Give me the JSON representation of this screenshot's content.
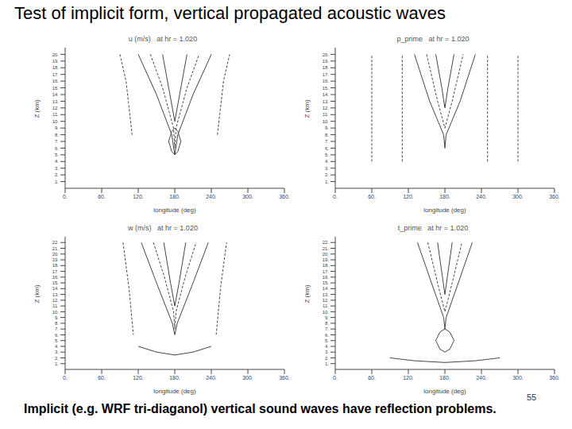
{
  "slide": {
    "title": "Test of implicit form, vertical propagated acoustic waves",
    "caption": "Implicit (e.g. WRF tri-diaganol) vertical sound waves have reflection problems.",
    "page_number": "55"
  },
  "chart_data": [
    {
      "type": "contour",
      "title": "u (m/s)   at hr = 1.020",
      "x_label": "longitude (deg)",
      "y_label": "Z (km)",
      "xlim": [
        0,
        360
      ],
      "xticks": [
        {
          "value": 0,
          "label": "0."
        },
        {
          "value": 60,
          "label": "60."
        },
        {
          "value": 120,
          "label": "120."
        },
        {
          "value": 180,
          "label": "180."
        },
        {
          "value": 240,
          "label": "240."
        },
        {
          "value": 300,
          "label": "300."
        },
        {
          "value": 360,
          "label": "360."
        }
      ],
      "ylim": [
        0,
        21
      ],
      "yticks": [
        {
          "value": 1,
          "label": "1."
        },
        {
          "value": 2,
          "label": "2."
        },
        {
          "value": 3,
          "label": "3."
        },
        {
          "value": 4,
          "label": "4."
        },
        {
          "value": 5,
          "label": "5."
        },
        {
          "value": 6,
          "label": "6."
        },
        {
          "value": 7,
          "label": "7."
        },
        {
          "value": 8,
          "label": "8."
        },
        {
          "value": 9,
          "label": "9."
        },
        {
          "value": 10,
          "label": "10."
        },
        {
          "value": 11,
          "label": "11."
        },
        {
          "value": 12,
          "label": "12."
        },
        {
          "value": 13,
          "label": "13."
        },
        {
          "value": 14,
          "label": "14."
        },
        {
          "value": 15,
          "label": "15."
        },
        {
          "value": 16,
          "label": "16."
        },
        {
          "value": 17,
          "label": "17."
        },
        {
          "value": 18,
          "label": "18."
        },
        {
          "value": 19,
          "label": "19."
        },
        {
          "value": 20,
          "label": "20."
        }
      ],
      "series": [
        {
          "color": "#444444",
          "line_style": "solid",
          "x": [
            120,
            150,
            175,
            180,
            185,
            210,
            240
          ],
          "values": [
            20,
            14,
            8,
            5,
            8,
            14,
            20
          ]
        },
        {
          "color": "#444444",
          "line_style": "dashed",
          "x": [
            140,
            160,
            178,
            180,
            182,
            200,
            220
          ],
          "values": [
            20,
            15,
            9,
            6,
            9,
            15,
            20
          ]
        },
        {
          "color": "#444444",
          "line_style": "solid",
          "x": [
            160,
            172,
            180,
            188,
            200
          ],
          "values": [
            20,
            14,
            10,
            14,
            20
          ]
        },
        {
          "color": "#444444",
          "line_style": "dashed",
          "x": [
            90,
            100,
            105,
            110
          ],
          "values": [
            20,
            16,
            12,
            8
          ]
        },
        {
          "color": "#444444",
          "line_style": "dashed",
          "x": [
            250,
            255,
            260,
            270
          ],
          "values": [
            8,
            12,
            16,
            20
          ]
        },
        {
          "color": "#444444",
          "line_style": "solid",
          "x": [
            170,
            175,
            180,
            185,
            190,
            185,
            180,
            175,
            170
          ],
          "values": [
            7,
            8.5,
            9,
            8.5,
            7,
            5.5,
            5,
            5.5,
            7
          ]
        }
      ]
    },
    {
      "type": "contour",
      "title": "p_prime   at hr = 1.020",
      "x_label": "longitude (deg)",
      "y_label": "Z (km)",
      "xlim": [
        0,
        360
      ],
      "xticks": [
        {
          "value": 0,
          "label": "0."
        },
        {
          "value": 60,
          "label": "60."
        },
        {
          "value": 120,
          "label": "120."
        },
        {
          "value": 180,
          "label": "180."
        },
        {
          "value": 240,
          "label": "240."
        },
        {
          "value": 300,
          "label": "300."
        },
        {
          "value": 360,
          "label": "360."
        }
      ],
      "ylim": [
        0,
        21
      ],
      "yticks": [
        {
          "value": 1,
          "label": "1."
        },
        {
          "value": 2,
          "label": "2."
        },
        {
          "value": 3,
          "label": "3."
        },
        {
          "value": 4,
          "label": "4."
        },
        {
          "value": 5,
          "label": "5."
        },
        {
          "value": 6,
          "label": "6."
        },
        {
          "value": 7,
          "label": "7."
        },
        {
          "value": 8,
          "label": "8."
        },
        {
          "value": 9,
          "label": "9."
        },
        {
          "value": 10,
          "label": "10."
        },
        {
          "value": 11,
          "label": "11."
        },
        {
          "value": 12,
          "label": "12."
        },
        {
          "value": 13,
          "label": "13."
        },
        {
          "value": 14,
          "label": "14."
        },
        {
          "value": 15,
          "label": "15."
        },
        {
          "value": 16,
          "label": "16."
        },
        {
          "value": 17,
          "label": "17."
        },
        {
          "value": 18,
          "label": "18."
        },
        {
          "value": 19,
          "label": "19."
        },
        {
          "value": 20,
          "label": "20."
        }
      ],
      "series": [
        {
          "color": "#444444",
          "line_style": "dashed",
          "x": [
            60,
            60
          ],
          "values": [
            4,
            20
          ]
        },
        {
          "color": "#444444",
          "line_style": "dashed",
          "x": [
            110,
            110
          ],
          "values": [
            4,
            20
          ]
        },
        {
          "color": "#444444",
          "line_style": "dashed",
          "x": [
            250,
            250
          ],
          "values": [
            4,
            20
          ]
        },
        {
          "color": "#444444",
          "line_style": "dashed",
          "x": [
            300,
            300
          ],
          "values": [
            4,
            20
          ]
        },
        {
          "color": "#444444",
          "line_style": "solid",
          "x": [
            130,
            155,
            178,
            180,
            182,
            205,
            230
          ],
          "values": [
            20,
            13,
            8,
            6,
            8,
            13,
            20
          ]
        },
        {
          "color": "#444444",
          "line_style": "dashed",
          "x": [
            150,
            168,
            180,
            192,
            210
          ],
          "values": [
            20,
            13,
            9,
            13,
            20
          ]
        },
        {
          "color": "#444444",
          "line_style": "solid",
          "x": [
            165,
            175,
            180,
            185,
            195
          ],
          "values": [
            20,
            15,
            12,
            15,
            20
          ]
        }
      ]
    },
    {
      "type": "contour",
      "title": "w (m/s)   at hr = 1.020",
      "x_label": "longitude (deg)",
      "y_label": "Z (km)",
      "xlim": [
        0,
        360
      ],
      "xticks": [
        {
          "value": 0,
          "label": "0."
        },
        {
          "value": 60,
          "label": "60."
        },
        {
          "value": 120,
          "label": "120."
        },
        {
          "value": 180,
          "label": "180."
        },
        {
          "value": 240,
          "label": "240."
        },
        {
          "value": 300,
          "label": "300."
        },
        {
          "value": 360,
          "label": "360."
        }
      ],
      "ylim": [
        0,
        23
      ],
      "yticks": [
        {
          "value": 1,
          "label": "1."
        },
        {
          "value": 2,
          "label": "2."
        },
        {
          "value": 3,
          "label": "3."
        },
        {
          "value": 4,
          "label": "4."
        },
        {
          "value": 5,
          "label": "5."
        },
        {
          "value": 6,
          "label": "6."
        },
        {
          "value": 7,
          "label": "7."
        },
        {
          "value": 8,
          "label": "8."
        },
        {
          "value": 9,
          "label": "9."
        },
        {
          "value": 10,
          "label": "10."
        },
        {
          "value": 11,
          "label": "11."
        },
        {
          "value": 12,
          "label": "12."
        },
        {
          "value": 13,
          "label": "13."
        },
        {
          "value": 14,
          "label": "14."
        },
        {
          "value": 15,
          "label": "15."
        },
        {
          "value": 16,
          "label": "16."
        },
        {
          "value": 17,
          "label": "17."
        },
        {
          "value": 18,
          "label": "18."
        },
        {
          "value": 19,
          "label": "19."
        },
        {
          "value": 20,
          "label": "20."
        },
        {
          "value": 21,
          "label": "21."
        },
        {
          "value": 22,
          "label": "22."
        }
      ],
      "series": [
        {
          "color": "#444444",
          "line_style": "solid",
          "x": [
            125,
            150,
            176,
            180,
            184,
            210,
            235
          ],
          "values": [
            22,
            15,
            8,
            6,
            8,
            15,
            22
          ]
        },
        {
          "color": "#444444",
          "line_style": "dashed",
          "x": [
            145,
            163,
            178,
            180,
            182,
            197,
            215
          ],
          "values": [
            22,
            16,
            10,
            7,
            10,
            16,
            22
          ]
        },
        {
          "color": "#444444",
          "line_style": "solid",
          "x": [
            162,
            173,
            180,
            187,
            198
          ],
          "values": [
            22,
            15,
            11,
            15,
            22
          ]
        },
        {
          "color": "#444444",
          "line_style": "dashed",
          "x": [
            95,
            105,
            112
          ],
          "values": [
            22,
            14,
            6
          ]
        },
        {
          "color": "#444444",
          "line_style": "dashed",
          "x": [
            248,
            255,
            265
          ],
          "values": [
            6,
            14,
            22
          ]
        },
        {
          "color": "#444444",
          "line_style": "solid",
          "x": [
            120,
            150,
            180,
            210,
            240
          ],
          "values": [
            4,
            3,
            2.5,
            3,
            4
          ]
        }
      ]
    },
    {
      "type": "contour",
      "title": "t_prime   at hr = 1.020",
      "x_label": "longitude (deg)",
      "y_label": "Z (km)",
      "xlim": [
        0,
        360
      ],
      "xticks": [
        {
          "value": 0,
          "label": "0."
        },
        {
          "value": 60,
          "label": "60."
        },
        {
          "value": 120,
          "label": "120."
        },
        {
          "value": 180,
          "label": "180."
        },
        {
          "value": 240,
          "label": "240."
        },
        {
          "value": 300,
          "label": "300."
        },
        {
          "value": 360,
          "label": "360."
        }
      ],
      "ylim": [
        0,
        23
      ],
      "yticks": [
        {
          "value": 1,
          "label": "1."
        },
        {
          "value": 2,
          "label": "2."
        },
        {
          "value": 3,
          "label": "3."
        },
        {
          "value": 4,
          "label": "4."
        },
        {
          "value": 5,
          "label": "5."
        },
        {
          "value": 6,
          "label": "6."
        },
        {
          "value": 7,
          "label": "7."
        },
        {
          "value": 8,
          "label": "8."
        },
        {
          "value": 9,
          "label": "9."
        },
        {
          "value": 10,
          "label": "10."
        },
        {
          "value": 11,
          "label": "11."
        },
        {
          "value": 12,
          "label": "12."
        },
        {
          "value": 13,
          "label": "13."
        },
        {
          "value": 14,
          "label": "14."
        },
        {
          "value": 15,
          "label": "15."
        },
        {
          "value": 16,
          "label": "16."
        },
        {
          "value": 17,
          "label": "17."
        },
        {
          "value": 18,
          "label": "18."
        },
        {
          "value": 19,
          "label": "19."
        },
        {
          "value": 20,
          "label": "20."
        },
        {
          "value": 21,
          "label": "21."
        },
        {
          "value": 22,
          "label": "22."
        }
      ],
      "series": [
        {
          "color": "#444444",
          "line_style": "solid",
          "x": [
            135,
            158,
            178,
            180,
            182,
            202,
            225
          ],
          "values": [
            22,
            15,
            9,
            7,
            9,
            15,
            22
          ]
        },
        {
          "color": "#444444",
          "line_style": "dashed",
          "x": [
            152,
            168,
            180,
            192,
            208
          ],
          "values": [
            22,
            15,
            10,
            15,
            22
          ]
        },
        {
          "color": "#444444",
          "line_style": "solid",
          "x": [
            168,
            176,
            180,
            184,
            192
          ],
          "values": [
            22,
            16,
            13,
            16,
            22
          ]
        },
        {
          "color": "#444444",
          "line_style": "solid",
          "x": [
            165,
            172,
            180,
            188,
            195,
            188,
            180,
            172,
            165
          ],
          "values": [
            5,
            6.5,
            7,
            6.5,
            5,
            3.5,
            3,
            3.5,
            5
          ]
        },
        {
          "color": "#444444",
          "line_style": "solid",
          "x": [
            90,
            130,
            180,
            230,
            270
          ],
          "values": [
            2,
            1.5,
            1.2,
            1.5,
            2
          ]
        }
      ]
    }
  ]
}
